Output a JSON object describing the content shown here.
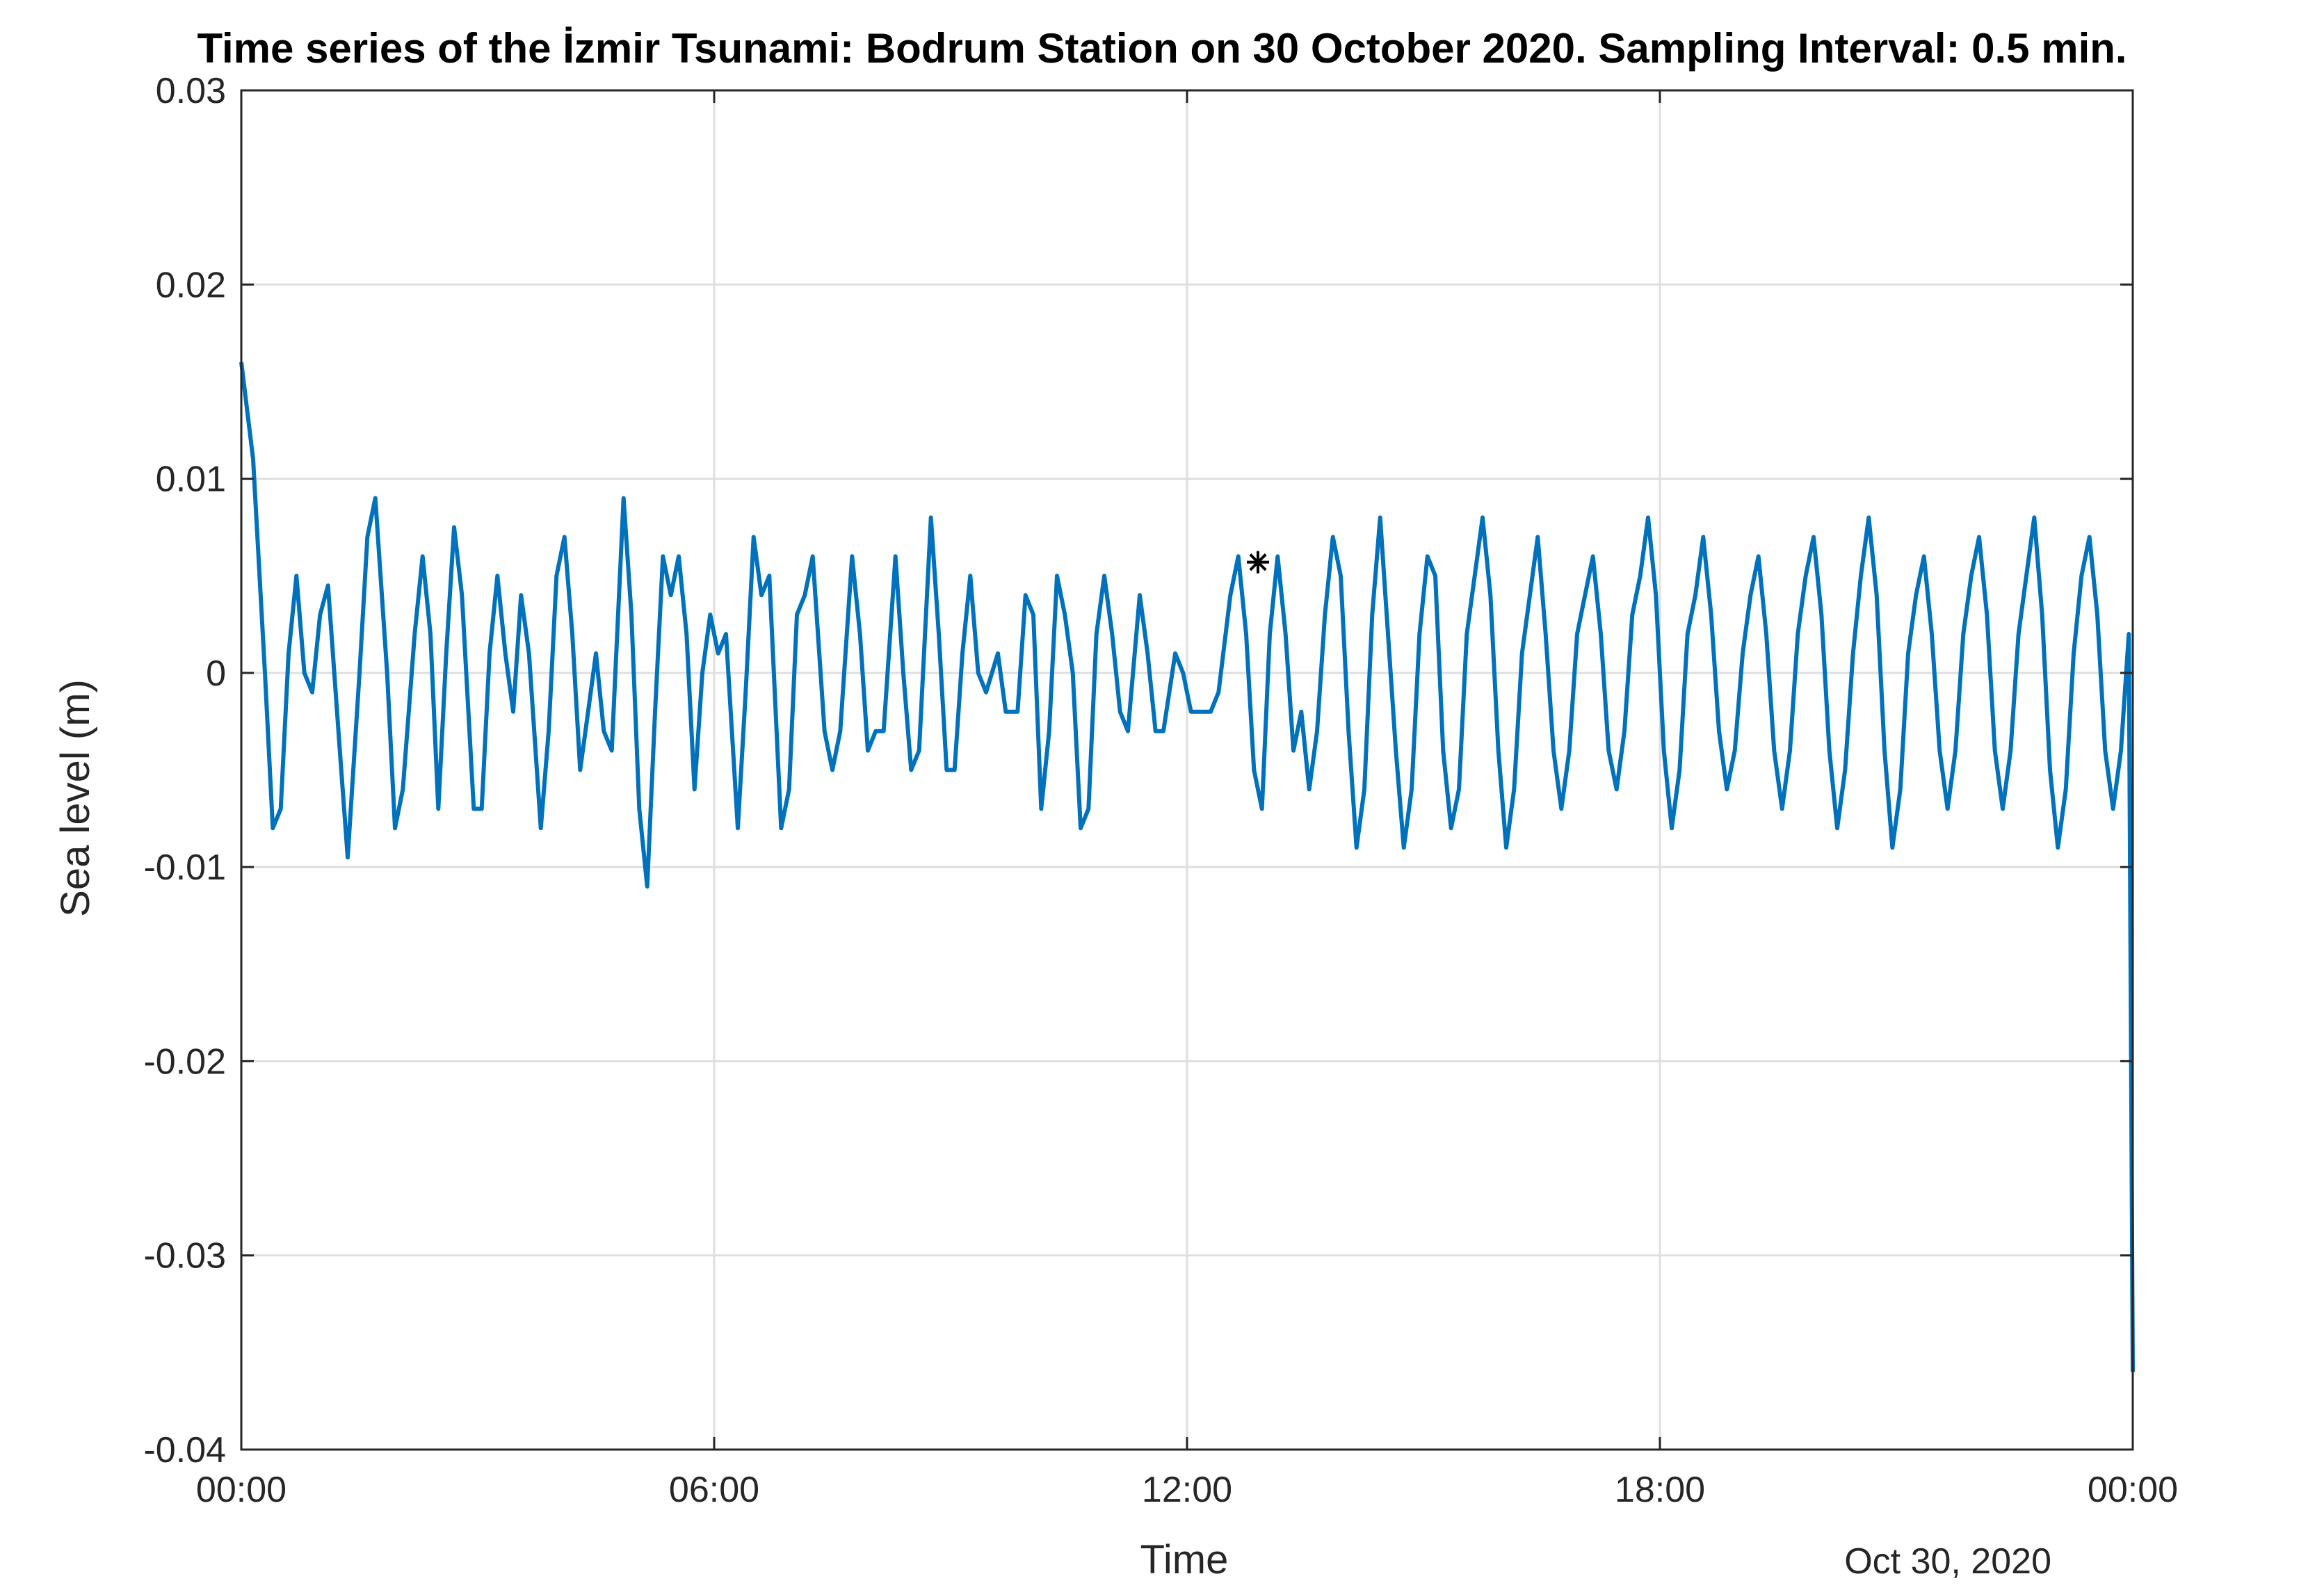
{
  "chart_data": {
    "type": "line",
    "title": "Time series of the İzmir Tsunami: Bodrum Station on 30 October 2020. Sampling Interval: 0.5 min.",
    "xlabel": "Time",
    "ylabel": "Sea level (m)",
    "date_label": "Oct 30, 2020",
    "xlim_hours": [
      0,
      24
    ],
    "ylim": [
      -0.04,
      0.03
    ],
    "grid": true,
    "x_ticks": [
      {
        "hour": 0,
        "label": "00:00"
      },
      {
        "hour": 6,
        "label": "06:00"
      },
      {
        "hour": 12,
        "label": "12:00"
      },
      {
        "hour": 18,
        "label": "18:00"
      },
      {
        "hour": 24,
        "label": "00:00"
      }
    ],
    "y_ticks": [
      {
        "value": 0.03,
        "label": "0.03"
      },
      {
        "value": 0.02,
        "label": "0.02"
      },
      {
        "value": 0.01,
        "label": "0.01"
      },
      {
        "value": 0,
        "label": "0"
      },
      {
        "value": -0.01,
        "label": "-0.01"
      },
      {
        "value": -0.02,
        "label": "-0.02"
      },
      {
        "value": -0.03,
        "label": "-0.03"
      },
      {
        "value": -0.04,
        "label": "-0.04"
      }
    ],
    "series": [
      {
        "color": "#0072BD",
        "points": [
          [
            0.0,
            0.016
          ],
          [
            0.15,
            0.011
          ],
          [
            0.3,
            0.0
          ],
          [
            0.4,
            -0.008
          ],
          [
            0.5,
            -0.007
          ],
          [
            0.6,
            0.001
          ],
          [
            0.7,
            0.005
          ],
          [
            0.8,
            0.0
          ],
          [
            0.9,
            -0.001
          ],
          [
            1.0,
            0.003
          ],
          [
            1.1,
            0.0045
          ],
          [
            1.25,
            -0.004
          ],
          [
            1.35,
            -0.0095
          ],
          [
            1.5,
            0.0
          ],
          [
            1.6,
            0.007
          ],
          [
            1.7,
            0.009
          ],
          [
            1.85,
            0.0
          ],
          [
            1.95,
            -0.008
          ],
          [
            2.05,
            -0.006
          ],
          [
            2.2,
            0.002
          ],
          [
            2.3,
            0.006
          ],
          [
            2.4,
            0.002
          ],
          [
            2.5,
            -0.007
          ],
          [
            2.6,
            0.001
          ],
          [
            2.7,
            0.0075
          ],
          [
            2.8,
            0.004
          ],
          [
            2.95,
            -0.007
          ],
          [
            3.05,
            -0.007
          ],
          [
            3.15,
            0.001
          ],
          [
            3.25,
            0.005
          ],
          [
            3.35,
            0.001
          ],
          [
            3.45,
            -0.002
          ],
          [
            3.55,
            0.004
          ],
          [
            3.65,
            0.001
          ],
          [
            3.8,
            -0.008
          ],
          [
            3.9,
            -0.003
          ],
          [
            4.0,
            0.005
          ],
          [
            4.1,
            0.007
          ],
          [
            4.2,
            0.002
          ],
          [
            4.3,
            -0.005
          ],
          [
            4.4,
            -0.002
          ],
          [
            4.5,
            0.001
          ],
          [
            4.6,
            -0.003
          ],
          [
            4.7,
            -0.004
          ],
          [
            4.85,
            0.009
          ],
          [
            4.95,
            0.003
          ],
          [
            5.05,
            -0.007
          ],
          [
            5.15,
            -0.011
          ],
          [
            5.25,
            -0.002
          ],
          [
            5.35,
            0.006
          ],
          [
            5.45,
            0.004
          ],
          [
            5.55,
            0.006
          ],
          [
            5.65,
            0.002
          ],
          [
            5.75,
            -0.006
          ],
          [
            5.85,
            0.0
          ],
          [
            5.95,
            0.003
          ],
          [
            6.05,
            0.001
          ],
          [
            6.15,
            0.002
          ],
          [
            6.3,
            -0.008
          ],
          [
            6.4,
            -0.001
          ],
          [
            6.5,
            0.007
          ],
          [
            6.6,
            0.004
          ],
          [
            6.7,
            0.005
          ],
          [
            6.85,
            -0.008
          ],
          [
            6.95,
            -0.006
          ],
          [
            7.05,
            0.003
          ],
          [
            7.15,
            0.004
          ],
          [
            7.25,
            0.006
          ],
          [
            7.4,
            -0.003
          ],
          [
            7.5,
            -0.005
          ],
          [
            7.6,
            -0.003
          ],
          [
            7.75,
            0.006
          ],
          [
            7.85,
            0.002
          ],
          [
            7.95,
            -0.004
          ],
          [
            8.05,
            -0.003
          ],
          [
            8.15,
            -0.003
          ],
          [
            8.3,
            0.006
          ],
          [
            8.4,
            0.0
          ],
          [
            8.5,
            -0.005
          ],
          [
            8.6,
            -0.004
          ],
          [
            8.75,
            0.008
          ],
          [
            8.85,
            0.002
          ],
          [
            8.95,
            -0.005
          ],
          [
            9.05,
            -0.005
          ],
          [
            9.15,
            0.001
          ],
          [
            9.25,
            0.005
          ],
          [
            9.35,
            0.0
          ],
          [
            9.45,
            -0.001
          ],
          [
            9.6,
            0.001
          ],
          [
            9.7,
            -0.002
          ],
          [
            9.85,
            -0.002
          ],
          [
            9.95,
            0.004
          ],
          [
            10.05,
            0.003
          ],
          [
            10.15,
            -0.007
          ],
          [
            10.25,
            -0.003
          ],
          [
            10.35,
            0.005
          ],
          [
            10.45,
            0.003
          ],
          [
            10.55,
            0.0
          ],
          [
            10.65,
            -0.008
          ],
          [
            10.75,
            -0.007
          ],
          [
            10.85,
            0.002
          ],
          [
            10.95,
            0.005
          ],
          [
            11.05,
            0.002
          ],
          [
            11.15,
            -0.002
          ],
          [
            11.25,
            -0.003
          ],
          [
            11.4,
            0.004
          ],
          [
            11.5,
            0.001
          ],
          [
            11.6,
            -0.003
          ],
          [
            11.7,
            -0.003
          ],
          [
            11.85,
            0.001
          ],
          [
            11.95,
            0.0
          ],
          [
            12.05,
            -0.002
          ],
          [
            12.15,
            -0.002
          ],
          [
            12.3,
            -0.002
          ],
          [
            12.4,
            -0.001
          ],
          [
            12.55,
            0.004
          ],
          [
            12.65,
            0.006
          ],
          [
            12.75,
            0.002
          ],
          [
            12.85,
            -0.005
          ],
          [
            12.95,
            -0.007
          ],
          [
            13.05,
            0.002
          ],
          [
            13.15,
            0.006
          ],
          [
            13.25,
            0.002
          ],
          [
            13.35,
            -0.004
          ],
          [
            13.45,
            -0.002
          ],
          [
            13.55,
            -0.006
          ],
          [
            13.65,
            -0.003
          ],
          [
            13.75,
            0.003
          ],
          [
            13.85,
            0.007
          ],
          [
            13.95,
            0.005
          ],
          [
            14.05,
            -0.003
          ],
          [
            14.15,
            -0.009
          ],
          [
            14.25,
            -0.006
          ],
          [
            14.35,
            0.003
          ],
          [
            14.45,
            0.008
          ],
          [
            14.55,
            0.002
          ],
          [
            14.65,
            -0.004
          ],
          [
            14.75,
            -0.009
          ],
          [
            14.85,
            -0.006
          ],
          [
            14.95,
            0.002
          ],
          [
            15.05,
            0.006
          ],
          [
            15.15,
            0.005
          ],
          [
            15.25,
            -0.004
          ],
          [
            15.35,
            -0.008
          ],
          [
            15.45,
            -0.006
          ],
          [
            15.55,
            0.002
          ],
          [
            15.65,
            0.005
          ],
          [
            15.75,
            0.008
          ],
          [
            15.85,
            0.004
          ],
          [
            15.95,
            -0.004
          ],
          [
            16.05,
            -0.009
          ],
          [
            16.15,
            -0.006
          ],
          [
            16.25,
            0.001
          ],
          [
            16.35,
            0.004
          ],
          [
            16.45,
            0.007
          ],
          [
            16.55,
            0.002
          ],
          [
            16.65,
            -0.004
          ],
          [
            16.75,
            -0.007
          ],
          [
            16.85,
            -0.004
          ],
          [
            16.95,
            0.002
          ],
          [
            17.05,
            0.004
          ],
          [
            17.15,
            0.006
          ],
          [
            17.25,
            0.002
          ],
          [
            17.35,
            -0.004
          ],
          [
            17.45,
            -0.006
          ],
          [
            17.55,
            -0.003
          ],
          [
            17.65,
            0.003
          ],
          [
            17.75,
            0.005
          ],
          [
            17.85,
            0.008
          ],
          [
            17.95,
            0.004
          ],
          [
            18.05,
            -0.004
          ],
          [
            18.15,
            -0.008
          ],
          [
            18.25,
            -0.005
          ],
          [
            18.35,
            0.002
          ],
          [
            18.45,
            0.004
          ],
          [
            18.55,
            0.007
          ],
          [
            18.65,
            0.003
          ],
          [
            18.75,
            -0.003
          ],
          [
            18.85,
            -0.006
          ],
          [
            18.95,
            -0.004
          ],
          [
            19.05,
            0.001
          ],
          [
            19.15,
            0.004
          ],
          [
            19.25,
            0.006
          ],
          [
            19.35,
            0.002
          ],
          [
            19.45,
            -0.004
          ],
          [
            19.55,
            -0.007
          ],
          [
            19.65,
            -0.004
          ],
          [
            19.75,
            0.002
          ],
          [
            19.85,
            0.005
          ],
          [
            19.95,
            0.007
          ],
          [
            20.05,
            0.003
          ],
          [
            20.15,
            -0.004
          ],
          [
            20.25,
            -0.008
          ],
          [
            20.35,
            -0.005
          ],
          [
            20.45,
            0.001
          ],
          [
            20.55,
            0.005
          ],
          [
            20.65,
            0.008
          ],
          [
            20.75,
            0.004
          ],
          [
            20.85,
            -0.004
          ],
          [
            20.95,
            -0.009
          ],
          [
            21.05,
            -0.006
          ],
          [
            21.15,
            0.001
          ],
          [
            21.25,
            0.004
          ],
          [
            21.35,
            0.006
          ],
          [
            21.45,
            0.002
          ],
          [
            21.55,
            -0.004
          ],
          [
            21.65,
            -0.007
          ],
          [
            21.75,
            -0.004
          ],
          [
            21.85,
            0.002
          ],
          [
            21.95,
            0.005
          ],
          [
            22.05,
            0.007
          ],
          [
            22.15,
            0.003
          ],
          [
            22.25,
            -0.004
          ],
          [
            22.35,
            -0.007
          ],
          [
            22.45,
            -0.004
          ],
          [
            22.55,
            0.002
          ],
          [
            22.65,
            0.005
          ],
          [
            22.75,
            0.008
          ],
          [
            22.85,
            0.003
          ],
          [
            22.95,
            -0.005
          ],
          [
            23.05,
            -0.009
          ],
          [
            23.15,
            -0.006
          ],
          [
            23.25,
            0.001
          ],
          [
            23.35,
            0.005
          ],
          [
            23.45,
            0.007
          ],
          [
            23.55,
            0.003
          ],
          [
            23.65,
            -0.004
          ],
          [
            23.75,
            -0.007
          ],
          [
            23.85,
            -0.004
          ],
          [
            23.95,
            0.002
          ],
          [
            24.0,
            -0.036
          ]
        ]
      }
    ],
    "marker": {
      "hour": 12.9,
      "value": 0.0057,
      "symbol": "*"
    }
  }
}
